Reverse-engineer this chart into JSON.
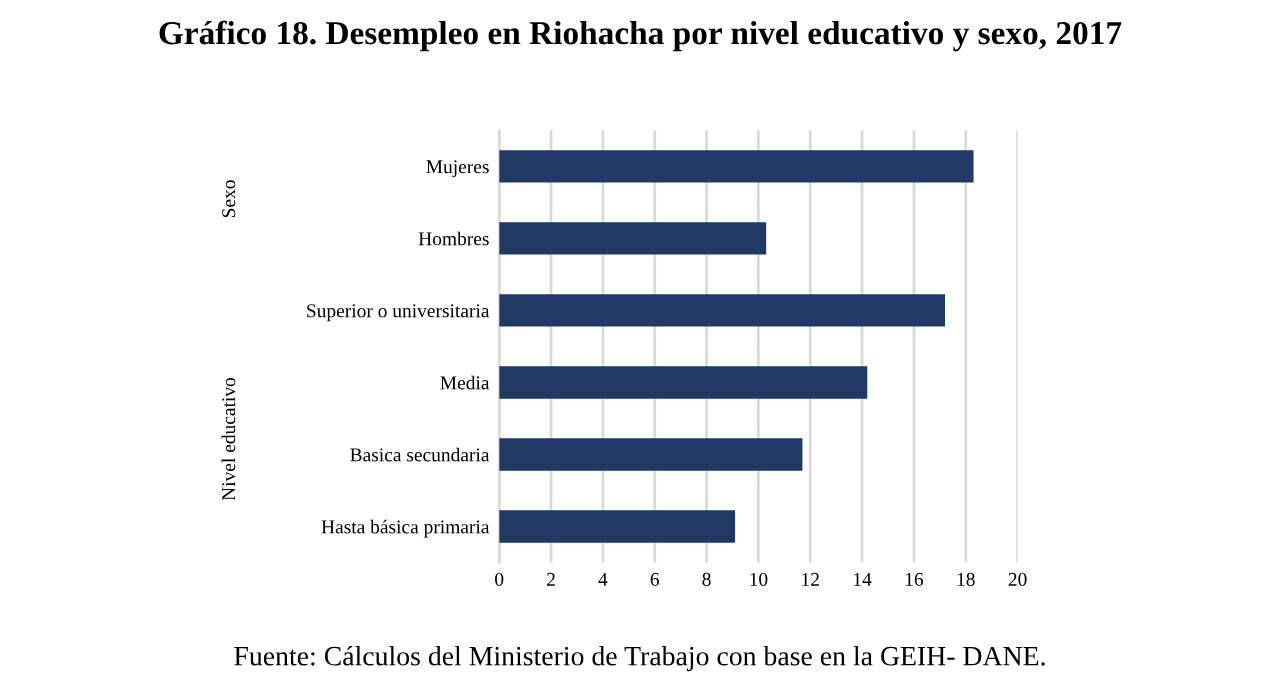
{
  "chart_data": {
    "type": "bar",
    "orientation": "horizontal",
    "title": "Gráfico 18. Desempleo en Riohacha por nivel educativo y sexo, 2017",
    "categories": [
      "Mujeres",
      "Hombres",
      "Superior o universitaria",
      "Media",
      "Basica secundaria",
      "Hasta básica primaria"
    ],
    "values": [
      18.3,
      10.3,
      17.2,
      14.2,
      11.7,
      9.1
    ],
    "color": "#1f3864",
    "xlim": [
      0,
      20
    ],
    "xticks": [
      0,
      2,
      4,
      6,
      8,
      10,
      12,
      14,
      16,
      18,
      20
    ],
    "grid": "x",
    "annotations": [
      "Sexo",
      "Nivel educativo",
      "Fuente: Cálculos del Ministerio de Trabajo con base en la GEIH- DANE."
    ]
  }
}
